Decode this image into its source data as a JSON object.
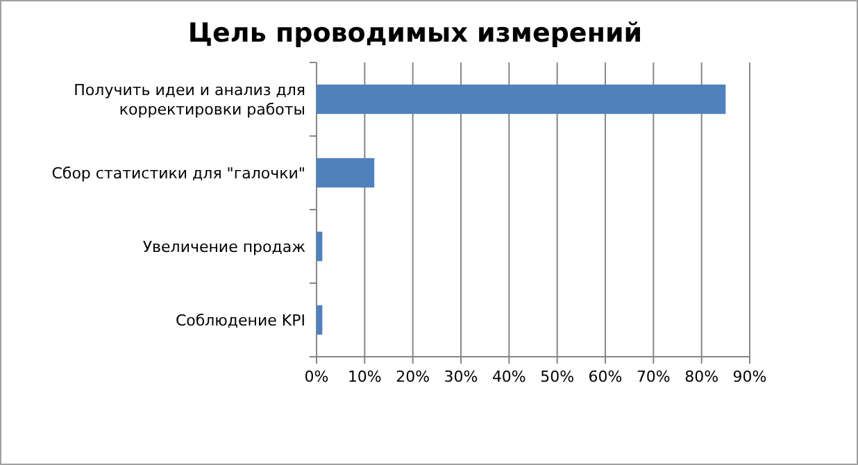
{
  "chart_data": {
    "type": "bar",
    "orientation": "horizontal",
    "title": "Цель проводимых измерений",
    "categories": [
      "Получить идеи и анализ для корректировки работы",
      "Сбор статистики для \"галочки\"",
      "Увеличение  продаж",
      "Соблюдение  KPI"
    ],
    "values": [
      85,
      12,
      1.2,
      1.2
    ],
    "color": "#4f81bd",
    "xlim": [
      0,
      90
    ],
    "xticks": [
      {
        "value": 0,
        "label": "0%"
      },
      {
        "value": 10,
        "label": "10%"
      },
      {
        "value": 20,
        "label": "20%"
      },
      {
        "value": 30,
        "label": "30%"
      },
      {
        "value": 40,
        "label": "40%"
      },
      {
        "value": 50,
        "label": "50%"
      },
      {
        "value": 60,
        "label": "60%"
      },
      {
        "value": 70,
        "label": "70%"
      },
      {
        "value": 80,
        "label": "80%"
      },
      {
        "value": 90,
        "label": "90%"
      }
    ],
    "grid": "x"
  }
}
